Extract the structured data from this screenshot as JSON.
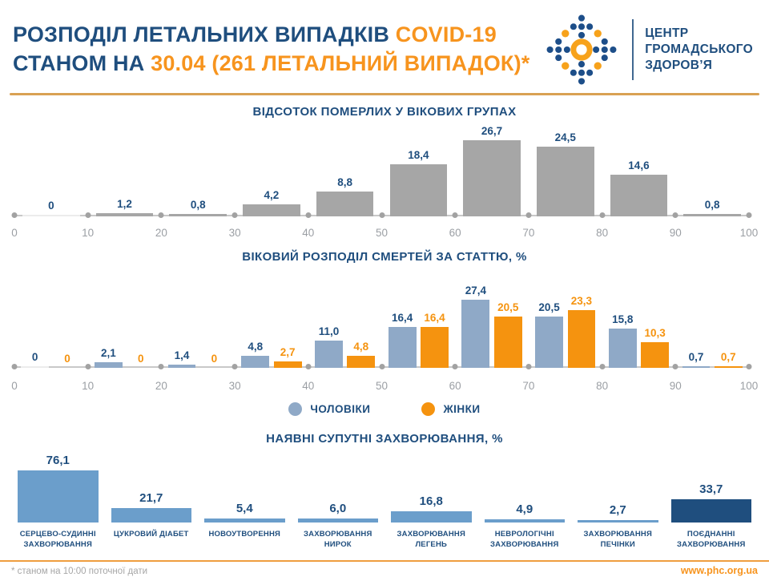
{
  "colors": {
    "navy": "#1f4e7e",
    "orange": "#f7941e",
    "rule_top": "#d9a153",
    "rule_bottom": "#ef9e3f",
    "bar_gray": "#a6a6a6",
    "bar_male": "#8fa9c7",
    "bar_female": "#f5930f",
    "bar_blue": "#6b9ecb",
    "bar_dark": "#1f4e7e",
    "axis_line": "#c8c8c8",
    "axis_dot": "#a2a2a2",
    "tick_label": "#9b9fa4",
    "note_gray": "#a6a6a6",
    "zero_bar": "#ececec"
  },
  "header": {
    "title_prefix": "РОЗПОДІЛ ЛЕТАЛЬНИХ ВИПАДКІВ",
    "title_accent": "COVID-19",
    "subtitle_prefix": "СТАНОМ НА",
    "subtitle_accent": "30.04 (261 ЛЕТАЛЬНИЙ ВИПАДОК)*",
    "logo_line1": "ЦЕНТР",
    "logo_line2": "ГРОМАДСЬКОГО",
    "logo_line3": "ЗДОРОВ’Я"
  },
  "chart_data": [
    {
      "id": "age-distribution",
      "type": "bar",
      "title": "ВІДСОТОК ПОМЕРЛИХ У ВІКОВИХ ГРУПАХ",
      "x_ticks": [
        "0",
        "10",
        "20",
        "30",
        "40",
        "50",
        "60",
        "70",
        "80",
        "90",
        "100"
      ],
      "age_bins": [
        "0–10",
        "10–20",
        "20–30",
        "30–40",
        "40–50",
        "50–60",
        "60–70",
        "70–80",
        "80–90",
        "90–100"
      ],
      "values": [
        0,
        1.2,
        0.8,
        4.2,
        8.8,
        18.4,
        26.7,
        24.5,
        14.6,
        0.8
      ],
      "labels": [
        "0",
        "1,2",
        "0,8",
        "4,2",
        "8,8",
        "18,4",
        "26,7",
        "24,5",
        "14,6",
        "0,8"
      ],
      "xlabel": "",
      "ylabel": "",
      "ylim": [
        0,
        28
      ],
      "grid": false
    },
    {
      "id": "age-by-sex",
      "type": "grouped-bar",
      "title": "ВІКОВИЙ РОЗПОДІЛ СМЕРТЕЙ ЗА СТАТТЮ, %",
      "x_ticks": [
        "0",
        "10",
        "20",
        "30",
        "40",
        "50",
        "60",
        "70",
        "80",
        "90",
        "100"
      ],
      "age_bins": [
        "0–10",
        "10–20",
        "20–30",
        "30–40",
        "40–50",
        "50–60",
        "60–70",
        "70–80",
        "80–90",
        "90–100"
      ],
      "series": [
        {
          "name": "ЧОЛОВІКИ",
          "color_key": "bar_male",
          "values": [
            0,
            2.1,
            1.4,
            4.8,
            11.0,
            16.4,
            27.4,
            20.5,
            15.8,
            0.7
          ],
          "labels": [
            "0",
            "2,1",
            "1,4",
            "4,8",
            "11,0",
            "16,4",
            "27,4",
            "20,5",
            "15,8",
            "0,7"
          ]
        },
        {
          "name": "ЖІНКИ",
          "color_key": "bar_female",
          "values": [
            0,
            0,
            0,
            2.7,
            4.8,
            16.4,
            20.5,
            23.3,
            10.3,
            0.7
          ],
          "labels": [
            "0",
            "0",
            "0",
            "2,7",
            "4,8",
            "16,4",
            "20,5",
            "23,3",
            "10,3",
            "0,7"
          ]
        }
      ],
      "xlabel": "",
      "ylabel": "",
      "ylim": [
        0,
        28
      ],
      "grid": false,
      "legend_position": "bottom"
    },
    {
      "id": "comorbidities",
      "type": "bar",
      "title": "НАЯВНІ СУПУТНІ ЗАХВОРЮВАННЯ, %",
      "categories": [
        "СЕРЦЕВО-СУДИННІ ЗАХВОРЮВАННЯ",
        "ЦУКРОВИЙ ДІАБЕТ",
        "НОВОУТВОРЕННЯ",
        "ЗАХВОРЮВАННЯ НИРОК",
        "ЗАХВОРЮВАННЯ ЛЕГЕНЬ",
        "НЕВРОЛОГІЧНІ ЗАХВОРЮВАННЯ",
        "ЗАХВОРЮВАННЯ ПЕЧІНКИ",
        "ПОЄДНАННІ ЗАХВОРЮВАННЯ"
      ],
      "category_lines": [
        [
          "СЕРЦЕВО-СУДИННІ",
          "ЗАХВОРЮВАННЯ"
        ],
        [
          "ЦУКРОВИЙ ДІАБЕТ"
        ],
        [
          "НОВОУТВОРЕННЯ"
        ],
        [
          "ЗАХВОРЮВАННЯ",
          "НИРОК"
        ],
        [
          "ЗАХВОРЮВАННЯ",
          "ЛЕГЕНЬ"
        ],
        [
          "НЕВРОЛОГІЧНІ",
          "ЗАХВОРЮВАННЯ"
        ],
        [
          "ЗАХВОРЮВАННЯ",
          "ПЕЧІНКИ"
        ],
        [
          "ПОЄДНАННІ",
          "ЗАХВОРЮВАННЯ"
        ]
      ],
      "values": [
        76.1,
        21.7,
        5.4,
        6.0,
        16.8,
        4.9,
        2.7,
        33.7
      ],
      "labels": [
        "76,1",
        "21,7",
        "5,4",
        "6,0",
        "16,8",
        "4,9",
        "2,7",
        "33,7"
      ],
      "bar_color_keys": [
        "bar_blue",
        "bar_blue",
        "bar_blue",
        "bar_blue",
        "bar_blue",
        "bar_blue",
        "bar_blue",
        "bar_dark"
      ],
      "xlabel": "",
      "ylabel": "",
      "ylim": [
        0,
        78
      ],
      "grid": false
    }
  ],
  "footer": {
    "note": "* станом на 10:00 поточної дати",
    "site": "www.phc.org.ua"
  }
}
